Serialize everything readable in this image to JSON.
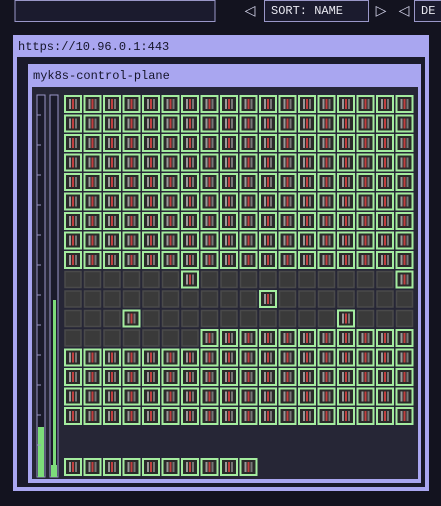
{
  "top_bar": {
    "prev_sort": "◁",
    "sort_label": "SORT: NAME",
    "next_sort": "▷",
    "prev_filter": "◁",
    "filter_label": "DE"
  },
  "cluster": {
    "url": "https://10.96.0.1:443",
    "node": {
      "name": "myk8s-control-plane"
    }
  }
}
